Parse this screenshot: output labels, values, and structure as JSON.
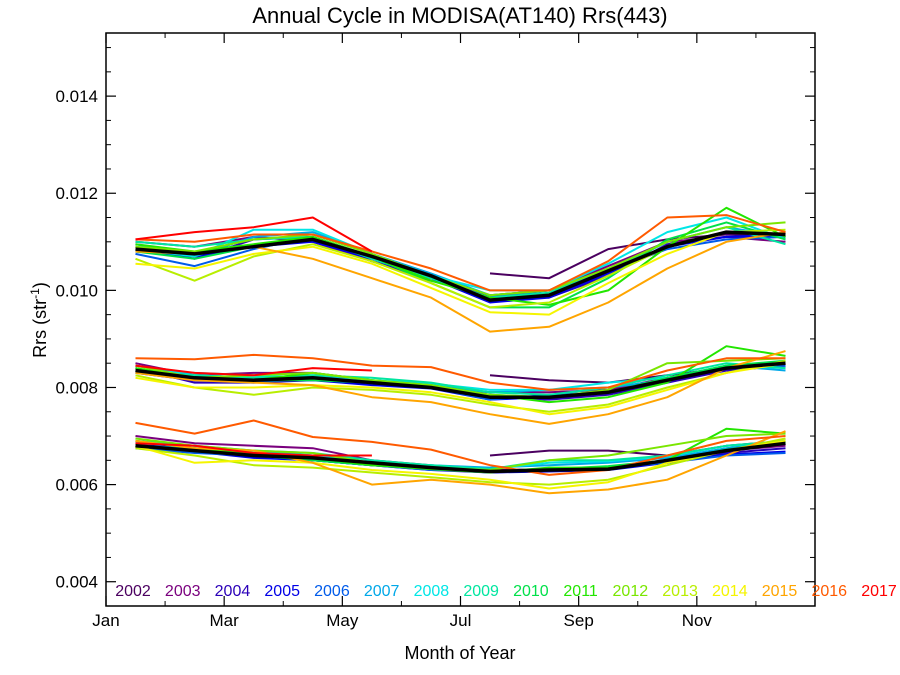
{
  "chart_data": {
    "type": "line",
    "title": "Annual Cycle in MODISA(AT140) Rrs(443)",
    "xlabel": "Month of Year",
    "ylabel_main": "Rrs (str",
    "ylabel_sup": "-1",
    "ylabel_close": ")",
    "xlim": [
      1,
      13
    ],
    "ylim": [
      0.0035,
      0.0153
    ],
    "x_ticks": [
      {
        "x": 1,
        "label": "Jan"
      },
      {
        "x": 3,
        "label": "Mar"
      },
      {
        "x": 5,
        "label": "May"
      },
      {
        "x": 7,
        "label": "Jul"
      },
      {
        "x": 9,
        "label": "Sep"
      },
      {
        "x": 11,
        "label": "Nov"
      }
    ],
    "y_ticks": [
      {
        "y": 0.004,
        "label": "0.004"
      },
      {
        "y": 0.006,
        "label": "0.006"
      },
      {
        "y": 0.008,
        "label": "0.008"
      },
      {
        "y": 0.01,
        "label": "0.010"
      },
      {
        "y": 0.012,
        "label": "0.012"
      },
      {
        "y": 0.014,
        "label": "0.014"
      }
    ],
    "grid": false,
    "legend_placement": "bottom",
    "x": [
      1.5,
      2.5,
      3.5,
      4.5,
      5.5,
      6.5,
      7.5,
      8.5,
      9.5,
      10.5,
      11.5,
      12.5
    ],
    "climatology_color": "#000000",
    "climatology": [
      [
        0.01085,
        0.01075,
        0.0109,
        0.01105,
        0.0107,
        0.0103,
        0.0098,
        0.0099,
        0.0104,
        0.0109,
        0.0112,
        0.01115
      ],
      [
        0.00835,
        0.0082,
        0.00815,
        0.0082,
        0.0081,
        0.008,
        0.0078,
        0.0078,
        0.0079,
        0.00815,
        0.0084,
        0.0085
      ],
      [
        0.0068,
        0.0067,
        0.0066,
        0.00655,
        0.00645,
        0.00635,
        0.00627,
        0.0063,
        0.00632,
        0.0065,
        0.0067,
        0.00685
      ]
    ],
    "series": [
      {
        "name": "2002",
        "color": "#4b0060",
        "values": [
          [
            null,
            null,
            null,
            null,
            null,
            null,
            0.01035,
            0.01025,
            0.01085,
            0.01105,
            0.01115,
            0.01115
          ],
          [
            null,
            null,
            null,
            null,
            null,
            null,
            0.00825,
            0.00815,
            0.0081,
            0.00825,
            0.0084,
            0.0085
          ],
          [
            null,
            null,
            null,
            null,
            null,
            null,
            0.0066,
            0.0067,
            0.0067,
            0.0066,
            0.0068,
            0.0069
          ]
        ]
      },
      {
        "name": "2003",
        "color": "#7a007e",
        "values": [
          [
            0.011,
            0.0109,
            0.0111,
            0.011,
            0.0106,
            0.0102,
            0.0099,
            0.01,
            0.0105,
            0.011,
            0.0111,
            0.011
          ],
          [
            0.0085,
            0.00825,
            0.0083,
            0.0083,
            0.00815,
            0.008,
            0.0079,
            0.0079,
            0.00795,
            0.0082,
            0.00835,
            0.00845
          ],
          [
            0.007,
            0.00685,
            0.0068,
            0.00675,
            0.0065,
            0.0064,
            0.0063,
            0.00632,
            0.00635,
            0.0065,
            0.0067,
            0.0068
          ]
        ]
      },
      {
        "name": "2004",
        "color": "#2a00b8",
        "values": [
          [
            0.0109,
            0.01065,
            0.01105,
            0.0111,
            0.0106,
            0.01025,
            0.0099,
            0.00985,
            0.0103,
            0.01095,
            0.0111,
            0.0111
          ],
          [
            0.0084,
            0.0081,
            0.0081,
            0.00815,
            0.0081,
            0.00805,
            0.0078,
            0.00775,
            0.00785,
            0.0081,
            0.00835,
            0.00845
          ],
          [
            0.00685,
            0.00675,
            0.00665,
            0.0065,
            0.0064,
            0.0063,
            0.00625,
            0.00628,
            0.00635,
            0.00645,
            0.00665,
            0.00675
          ]
        ]
      },
      {
        "name": "2005",
        "color": "#0000e6",
        "values": [
          [
            0.0108,
            0.0107,
            0.0109,
            0.011,
            0.01065,
            0.01025,
            0.00975,
            0.00985,
            0.01035,
            0.0109,
            0.0111,
            0.01115
          ],
          [
            0.0083,
            0.00815,
            0.00815,
            0.00815,
            0.00805,
            0.00798,
            0.00775,
            0.0078,
            0.0079,
            0.00815,
            0.0084,
            0.0085
          ],
          [
            0.0068,
            0.00668,
            0.00655,
            0.0065,
            0.0064,
            0.00632,
            0.00625,
            0.00627,
            0.0063,
            0.00645,
            0.00662,
            0.00668
          ]
        ]
      },
      {
        "name": "2006",
        "color": "#005bea",
        "values": [
          [
            0.01075,
            0.0105,
            0.01085,
            0.0111,
            0.0107,
            0.01025,
            0.00985,
            0.01,
            0.0104,
            0.01085,
            0.01105,
            0.0111
          ],
          [
            0.00835,
            0.00815,
            0.0081,
            0.0082,
            0.0081,
            0.008,
            0.00775,
            0.00785,
            0.0079,
            0.00815,
            0.0084,
            0.00845
          ],
          [
            0.00675,
            0.00665,
            0.0066,
            0.0065,
            0.0064,
            0.0063,
            0.00628,
            0.0063,
            0.00635,
            0.00645,
            0.0066,
            0.00665
          ]
        ]
      },
      {
        "name": "2007",
        "color": "#00a8e8",
        "values": [
          [
            0.01095,
            0.0107,
            0.0111,
            0.0112,
            0.01075,
            0.01035,
            0.0099,
            0.01,
            0.0104,
            0.011,
            0.0113,
            0.0111
          ],
          [
            0.00845,
            0.00825,
            0.0082,
            0.00825,
            0.00815,
            0.00805,
            0.0079,
            0.00795,
            0.008,
            0.00815,
            0.00845,
            0.00835
          ],
          [
            0.0068,
            0.00675,
            0.0067,
            0.0066,
            0.00645,
            0.0064,
            0.00635,
            0.0064,
            0.00645,
            0.00655,
            0.00675,
            0.0069
          ]
        ]
      },
      {
        "name": "2008",
        "color": "#00e6e6",
        "values": [
          [
            0.01085,
            0.0107,
            0.01125,
            0.01125,
            0.01075,
            0.0103,
            0.01,
            0.01,
            0.01055,
            0.0112,
            0.0115,
            0.01105
          ],
          [
            0.00835,
            0.0083,
            0.00825,
            0.0082,
            0.00815,
            0.00808,
            0.00795,
            0.00795,
            0.0081,
            0.0082,
            0.00845,
            0.0084
          ],
          [
            0.00685,
            0.0068,
            0.00665,
            0.0066,
            0.00645,
            0.0064,
            0.00632,
            0.00645,
            0.00648,
            0.00658,
            0.0068,
            0.00688
          ]
        ]
      },
      {
        "name": "2009",
        "color": "#00e6a0",
        "values": [
          [
            0.011,
            0.0109,
            0.01105,
            0.0111,
            0.01065,
            0.01025,
            0.00985,
            0.00995,
            0.0104,
            0.011,
            0.0113,
            0.01095
          ],
          [
            0.0083,
            0.00825,
            0.0082,
            0.00825,
            0.0082,
            0.0081,
            0.0079,
            0.00785,
            0.008,
            0.00825,
            0.0085,
            0.0084
          ],
          [
            0.0069,
            0.0068,
            0.0067,
            0.00665,
            0.0065,
            0.0064,
            0.00632,
            0.0065,
            0.0065,
            0.0066,
            0.0068,
            0.0069
          ]
        ]
      },
      {
        "name": "2010",
        "color": "#00e04a",
        "values": [
          [
            0.0108,
            0.01065,
            0.0109,
            0.01105,
            0.0107,
            0.01015,
            0.00965,
            0.00965,
            0.01025,
            0.01105,
            0.0114,
            0.01105
          ],
          [
            0.00835,
            0.0082,
            0.00815,
            0.00815,
            0.0081,
            0.00805,
            0.00785,
            0.0078,
            0.0079,
            0.0082,
            0.00845,
            0.00855
          ],
          [
            0.0068,
            0.0067,
            0.0066,
            0.0065,
            0.0064,
            0.00635,
            0.00628,
            0.00632,
            0.00638,
            0.0065,
            0.00672,
            0.00688
          ]
        ]
      },
      {
        "name": "2011",
        "color": "#22e600",
        "values": [
          [
            0.01095,
            0.0108,
            0.01095,
            0.0111,
            0.0107,
            0.0102,
            0.00985,
            0.0097,
            0.01,
            0.0109,
            0.0117,
            0.0111
          ],
          [
            0.0084,
            0.0082,
            0.00815,
            0.0083,
            0.00815,
            0.00805,
            0.00785,
            0.0077,
            0.0078,
            0.0081,
            0.00885,
            0.00865
          ],
          [
            0.0069,
            0.00675,
            0.00665,
            0.00655,
            0.0064,
            0.00632,
            0.00625,
            0.00635,
            0.00635,
            0.0065,
            0.00715,
            0.00705
          ]
        ]
      },
      {
        "name": "2012",
        "color": "#7ae600",
        "values": [
          [
            0.0109,
            0.0108,
            0.01105,
            0.01115,
            0.01075,
            0.0103,
            0.0099,
            0.01,
            0.01045,
            0.011,
            0.0113,
            0.0114
          ],
          [
            0.00845,
            0.0082,
            0.00825,
            0.0083,
            0.00815,
            0.00805,
            0.00785,
            0.0078,
            0.00795,
            0.0085,
            0.00855,
            0.0086
          ],
          [
            0.00695,
            0.0068,
            0.0067,
            0.00665,
            0.00645,
            0.00635,
            0.0063,
            0.0065,
            0.0066,
            0.0068,
            0.007,
            0.00705
          ]
        ]
      },
      {
        "name": "2013",
        "color": "#b8ee00",
        "values": [
          [
            0.01065,
            0.0102,
            0.0107,
            0.01095,
            0.0106,
            0.01015,
            0.00965,
            0.00975,
            0.0103,
            0.0109,
            0.0112,
            0.01125
          ],
          [
            0.00825,
            0.008,
            0.00785,
            0.008,
            0.00795,
            0.00785,
            0.00765,
            0.0075,
            0.00765,
            0.008,
            0.0083,
            0.00855
          ],
          [
            0.00675,
            0.0066,
            0.0064,
            0.00635,
            0.00625,
            0.00615,
            0.00605,
            0.006,
            0.0061,
            0.0064,
            0.0067,
            0.00695
          ]
        ]
      },
      {
        "name": "2014",
        "color": "#f5f500",
        "values": [
          [
            0.01055,
            0.01045,
            0.01075,
            0.0109,
            0.01055,
            0.01005,
            0.00955,
            0.0095,
            0.01015,
            0.01075,
            0.0112,
            0.01115
          ],
          [
            0.0082,
            0.008,
            0.008,
            0.00805,
            0.008,
            0.0079,
            0.0077,
            0.00745,
            0.0076,
            0.00795,
            0.0083,
            0.0085
          ],
          [
            0.0068,
            0.00645,
            0.0065,
            0.00645,
            0.0063,
            0.00622,
            0.0061,
            0.00592,
            0.00605,
            0.00645,
            0.0067,
            0.0069
          ]
        ]
      },
      {
        "name": "2015",
        "color": "#ffa500",
        "values": [
          [
            0.0108,
            0.01075,
            0.0109,
            0.01065,
            0.01025,
            0.00985,
            0.00915,
            0.00925,
            0.00975,
            0.01045,
            0.011,
            0.0112
          ],
          [
            0.0083,
            0.00815,
            0.0081,
            0.00805,
            0.0078,
            0.0077,
            0.00745,
            0.00725,
            0.00745,
            0.0078,
            0.0084,
            0.00875
          ],
          [
            0.0069,
            0.00675,
            0.0067,
            0.00645,
            0.006,
            0.0061,
            0.006,
            0.00582,
            0.0059,
            0.0061,
            0.0066,
            0.0071
          ]
        ]
      },
      {
        "name": "2016",
        "color": "#ff5a00",
        "values": [
          [
            0.01105,
            0.011,
            0.01115,
            0.01115,
            0.0108,
            0.01045,
            0.01,
            0.01,
            0.0106,
            0.0115,
            0.01155,
            0.0112
          ],
          [
            0.0086,
            0.00858,
            0.00867,
            0.0086,
            0.00845,
            0.00842,
            0.0081,
            0.00795,
            0.008,
            0.00835,
            0.0086,
            0.0086
          ],
          [
            0.00727,
            0.00705,
            0.00732,
            0.00698,
            0.00688,
            0.00672,
            0.0064,
            0.0062,
            0.0063,
            0.0066,
            0.0069,
            0.007
          ]
        ]
      },
      {
        "name": "2017",
        "color": "#ff0000",
        "values": [
          [
            0.01105,
            0.0112,
            0.0113,
            0.0115,
            0.0108,
            null,
            null,
            null,
            null,
            null,
            null,
            null
          ],
          [
            0.00845,
            0.0083,
            0.00825,
            0.0084,
            0.00835,
            null,
            null,
            null,
            null,
            null,
            null,
            null
          ],
          [
            0.00685,
            0.0068,
            0.00665,
            0.0066,
            0.0066,
            null,
            null,
            null,
            null,
            null,
            null,
            null
          ]
        ]
      }
    ]
  }
}
